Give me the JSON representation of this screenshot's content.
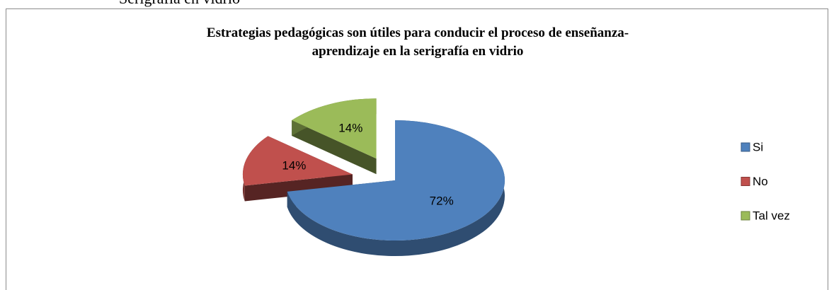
{
  "page_heading": "Serigrafía en vidrio",
  "chart_data": {
    "type": "pie3d",
    "title": "Estrategias pedagógicas son útiles para conducir el proceso de enseñanza-aprendizaje en la serigrafía en vidrio",
    "categories": [
      "Si",
      "No",
      "Tal vez"
    ],
    "values": [
      72,
      14,
      14
    ],
    "value_labels": [
      "72%",
      "14%",
      "14%"
    ],
    "colors": [
      "#4f81bd",
      "#c0504d",
      "#9bbb59"
    ],
    "exploded": true,
    "legend": "right"
  }
}
